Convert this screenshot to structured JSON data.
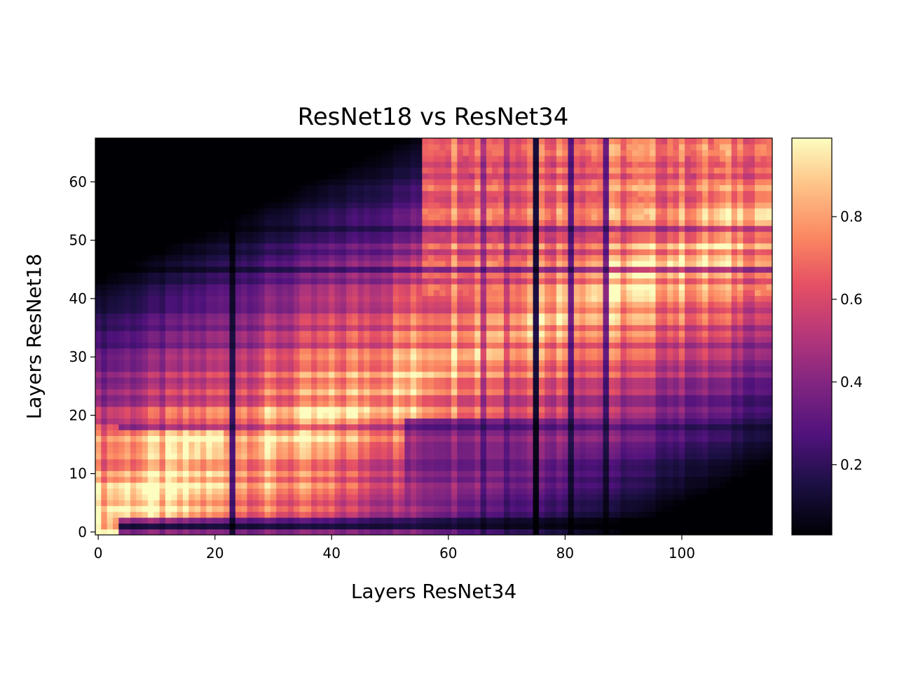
{
  "chart_data": {
    "type": "heatmap",
    "title": "ResNet18 vs ResNet34",
    "xlabel": "Layers ResNet34",
    "ylabel": "Layers ResNet18",
    "x_range": [
      0,
      115
    ],
    "y_range": [
      0,
      67
    ],
    "x_ticks": [
      0,
      20,
      40,
      60,
      80,
      100
    ],
    "y_ticks": [
      0,
      10,
      20,
      30,
      40,
      50,
      60
    ],
    "colormap": "magma",
    "colorbar": {
      "range": [
        0.03,
        0.99
      ],
      "ticks": [
        0.2,
        0.4,
        0.6,
        0.8
      ],
      "tick_labels": [
        "0.2",
        "0.4",
        "0.6",
        "0.8"
      ]
    },
    "grid": false,
    "origin": "lower",
    "description_values": {
      "diagonal_high_region": "near (0,0) to (50,35) values ~0.85-0.99",
      "upper_right_region": "values ~0.6-0.8",
      "dark_columns_x": [
        23,
        75,
        81,
        87
      ],
      "dark_rows_y": [
        1,
        18,
        45,
        52
      ]
    }
  }
}
